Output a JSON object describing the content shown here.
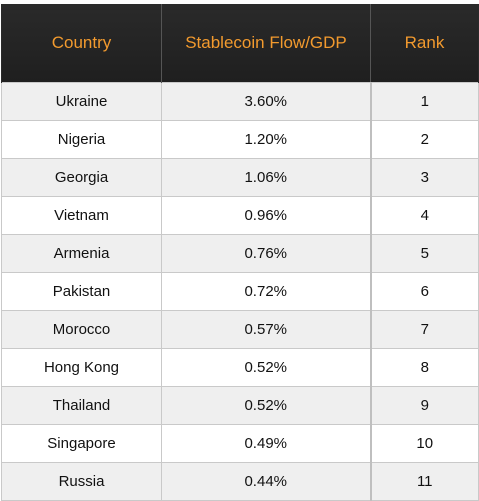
{
  "table": {
    "headers": {
      "country": "Country",
      "flow": "Stablecoin Flow/GDP",
      "rank": "Rank"
    },
    "rows": [
      {
        "country": "Ukraine",
        "flow": "3.60%",
        "rank": "1"
      },
      {
        "country": "Nigeria",
        "flow": "1.20%",
        "rank": "2"
      },
      {
        "country": "Georgia",
        "flow": "1.06%",
        "rank": "3"
      },
      {
        "country": "Vietnam",
        "flow": "0.96%",
        "rank": "4"
      },
      {
        "country": "Armenia",
        "flow": "0.76%",
        "rank": "5"
      },
      {
        "country": "Pakistan",
        "flow": "0.72%",
        "rank": "6"
      },
      {
        "country": "Morocco",
        "flow": "0.57%",
        "rank": "7"
      },
      {
        "country": "Hong Kong",
        "flow": "0.52%",
        "rank": "8"
      },
      {
        "country": "Thailand",
        "flow": "0.52%",
        "rank": "9"
      },
      {
        "country": "Singapore",
        "flow": "0.49%",
        "rank": "10"
      },
      {
        "country": "Russia",
        "flow": "0.44%",
        "rank": "11"
      }
    ]
  },
  "colors": {
    "header_background": "#222222",
    "header_text": "#f29a2e",
    "row_alt_background": "#efefef",
    "row_background": "#ffffff",
    "grid_line": "#c9c9c9"
  }
}
